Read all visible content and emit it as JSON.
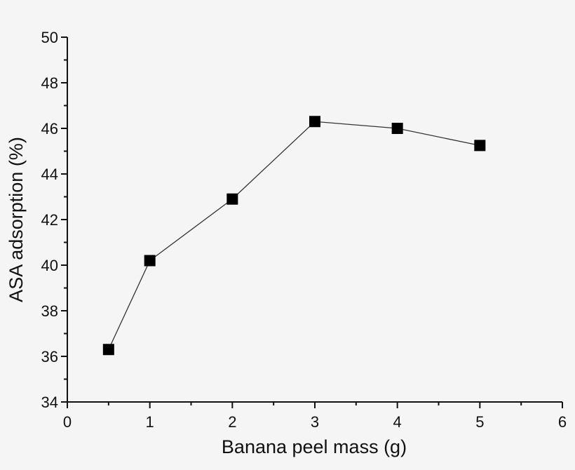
{
  "chart_data": {
    "type": "line",
    "title": "",
    "xlabel": "Banana peel mass (g)",
    "ylabel": "ASA adsorption (%)",
    "xlim": [
      0,
      6
    ],
    "ylim": [
      34,
      50
    ],
    "xticks": [
      0,
      1,
      2,
      3,
      4,
      5,
      6
    ],
    "yticks": [
      34,
      36,
      38,
      40,
      42,
      44,
      46,
      48,
      50
    ],
    "grid": false,
    "series": [
      {
        "name": "ASA adsorption",
        "marker": "square",
        "color": "#000000",
        "x": [
          0.5,
          1,
          2,
          3,
          4,
          5
        ],
        "y": [
          36.3,
          40.2,
          42.9,
          46.3,
          46.0,
          45.25
        ]
      }
    ]
  }
}
